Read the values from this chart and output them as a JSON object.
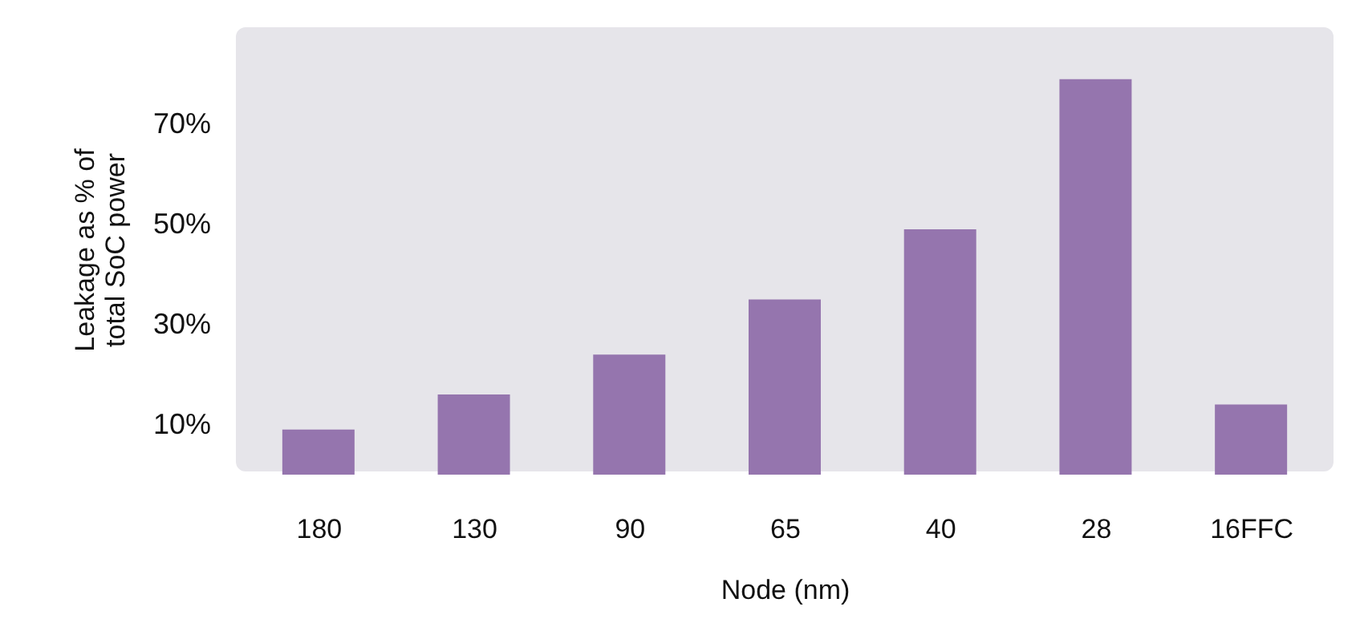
{
  "chart_data": {
    "type": "bar",
    "xlabel": "Node (nm)",
    "ylabel": "Leakage as % of\ntotal SoC power",
    "categories": [
      "180",
      "130",
      "90",
      "65",
      "40",
      "28",
      "16FFC"
    ],
    "values": [
      9,
      16,
      24,
      35,
      49,
      79,
      14
    ],
    "color": "#9575ae",
    "ylim": [
      0,
      90
    ],
    "yticks": [
      {
        "value": 10,
        "label": "10%"
      },
      {
        "value": 30,
        "label": "30%"
      },
      {
        "value": 50,
        "label": "50%"
      },
      {
        "value": 70,
        "label": "70%"
      }
    ],
    "grid": false
  }
}
